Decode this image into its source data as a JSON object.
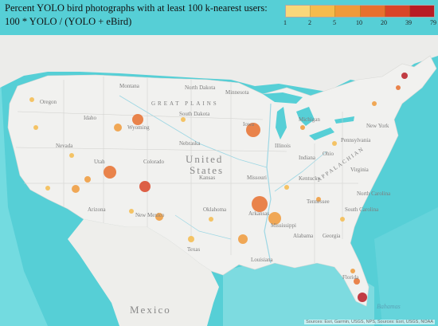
{
  "title": {
    "line1": "Percent YOLO bird photographs with at least 100 k-nearest users:",
    "line2": "100 * YOLO / (YOLO + eBird)"
  },
  "legend": {
    "ticks": [
      "1",
      "2",
      "5",
      "10",
      "20",
      "39",
      "79"
    ],
    "colors": [
      "#f9d77a",
      "#f5bb4c",
      "#f09a3a",
      "#e8702e",
      "#d94528",
      "#b81c24"
    ]
  },
  "map_labels": {
    "country": "United States",
    "country_line1": "United",
    "country_line2": "States",
    "mexico": "Mexico",
    "bahamas": "Bahamas",
    "states": {
      "montana": "Montana",
      "north_dakota": "North Dakota",
      "minnesota": "Minnesota",
      "oregon": "Oregon",
      "idaho": "Idaho",
      "south_dakota": "South Dakota",
      "wyoming": "Wyoming",
      "iowa": "Iowa",
      "nevada": "Nevada",
      "nebraska": "Nebraska",
      "utah": "Utah",
      "colorado": "Colorado",
      "kansas": "Kansas",
      "missouri": "Missouri",
      "illinois": "Illinois",
      "indiana": "Indiana",
      "ohio": "Ohio",
      "michigan": "Michigan",
      "pennsylvania": "Pennsylvania",
      "new_york": "New York",
      "kentucky": "Kentucky",
      "virginia": "Virginia",
      "tennessee": "Tennessee",
      "north_carolina": "North Carolina",
      "south_carolina": "South Carolina",
      "arizona": "Arizona",
      "new_mexico": "New Mexico",
      "oklahoma": "Oklahoma",
      "arkansas": "Arkansas",
      "texas": "Texas",
      "mississippi": "Mississippi",
      "alabama": "Alabama",
      "georgia": "Georgia",
      "louisiana": "Louisiana",
      "florida": "Florida"
    },
    "regions": {
      "great_plains": "GREAT PLAINS",
      "appalachian": "APPALACHIAN"
    }
  },
  "attribution": "Sources: Esri, Garmin, USGS, NPS, Sources: Esri, USGS, NOAA",
  "colors": {
    "ocean": "#56cfd6",
    "land": "#f1f1ef",
    "water_lines": "#9ed7e4",
    "text": "#111111"
  }
}
